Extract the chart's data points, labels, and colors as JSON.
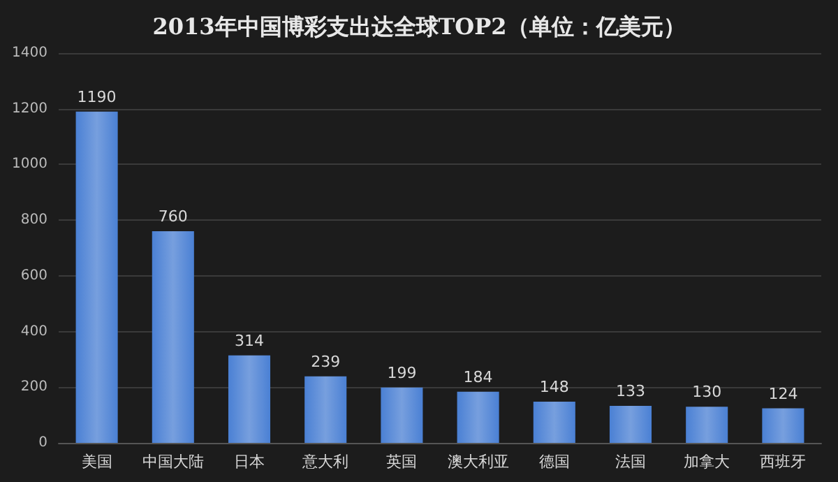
{
  "chart_data": {
    "type": "bar",
    "title": "2013年中国博彩支出达全球TOP2（单位：亿美元）",
    "categories": [
      "美国",
      "中国大陆",
      "日本",
      "意大利",
      "英国",
      "澳大利亚",
      "德国",
      "法国",
      "加拿大",
      "西班牙"
    ],
    "values": [
      1190,
      760,
      314,
      239,
      199,
      184,
      148,
      133,
      130,
      124
    ],
    "color": "#4a80d4",
    "ylim": [
      0,
      1400
    ],
    "yticks": [
      0,
      200,
      400,
      600,
      800,
      1000,
      1200,
      1400
    ],
    "grid": "y",
    "data_labels": true
  }
}
